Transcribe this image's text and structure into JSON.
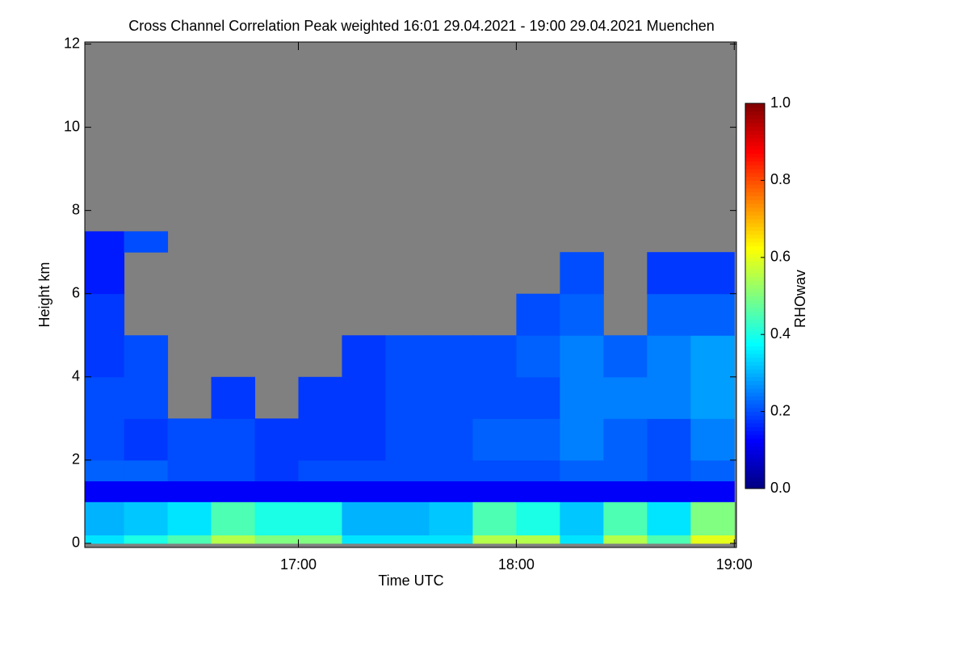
{
  "chart_data": {
    "type": "heatmap",
    "title": "Cross Channel Correlation Peak weighted   16:01 29.04.2021 - 19:00 29.04.2021 Muenchen",
    "x_label": "Time UTC",
    "y_label": "Height km",
    "xlim": [
      16.02,
      19.01
    ],
    "ylim": [
      -0.1,
      12.05
    ],
    "xticks": [
      {
        "value": 17,
        "label": "17:00"
      },
      {
        "value": 18,
        "label": "18:00"
      },
      {
        "value": 19,
        "label": "19:00"
      }
    ],
    "yticks": [
      0,
      2,
      4,
      6,
      8,
      10,
      12
    ],
    "xbins": [
      16.02,
      16.2,
      16.4,
      16.6,
      16.8,
      17.0,
      17.2,
      17.4,
      17.6,
      17.8,
      18.0,
      18.2,
      18.4,
      18.6,
      18.8,
      19.0
    ],
    "ybins": [
      0,
      0.2,
      1,
      1.5,
      2,
      3,
      4,
      5,
      6,
      7,
      7.5,
      12
    ],
    "z": [
      [
        0.35,
        0.4,
        0.45,
        0.55,
        0.5,
        0.5,
        0.35,
        0.35,
        0.35,
        0.55,
        0.55,
        0.35,
        0.55,
        0.45,
        0.6
      ],
      [
        0.3,
        0.32,
        0.35,
        0.45,
        0.4,
        0.4,
        0.3,
        0.3,
        0.32,
        0.45,
        0.4,
        0.32,
        0.45,
        0.35,
        0.5
      ],
      [
        0.12,
        0.12,
        0.12,
        0.12,
        0.12,
        0.12,
        0.12,
        0.12,
        0.12,
        0.12,
        0.12,
        0.12,
        0.12,
        0.12,
        0.12
      ],
      [
        0.22,
        0.22,
        0.2,
        0.2,
        0.18,
        0.2,
        0.2,
        0.2,
        0.2,
        0.2,
        0.2,
        0.22,
        0.22,
        0.2,
        0.22
      ],
      [
        0.2,
        0.18,
        0.2,
        0.2,
        0.18,
        0.18,
        0.18,
        0.2,
        0.2,
        0.22,
        0.22,
        0.25,
        0.22,
        0.2,
        0.25
      ],
      [
        0.2,
        0.2,
        null,
        0.18,
        null,
        0.18,
        0.18,
        0.2,
        0.2,
        0.2,
        0.2,
        0.25,
        0.25,
        0.25,
        0.28
      ],
      [
        0.18,
        0.2,
        null,
        null,
        null,
        null,
        0.18,
        0.2,
        0.2,
        0.2,
        0.22,
        0.25,
        0.22,
        0.25,
        0.28
      ],
      [
        0.18,
        null,
        null,
        null,
        null,
        null,
        null,
        null,
        null,
        null,
        0.2,
        0.22,
        null,
        0.22,
        0.22
      ],
      [
        0.15,
        null,
        null,
        null,
        null,
        null,
        null,
        null,
        null,
        null,
        null,
        0.2,
        null,
        0.18,
        0.18
      ],
      [
        0.15,
        0.2,
        null,
        null,
        null,
        null,
        null,
        null,
        null,
        null,
        null,
        null,
        null,
        null,
        null
      ],
      [
        null,
        null,
        null,
        null,
        null,
        null,
        null,
        null,
        null,
        null,
        null,
        null,
        null,
        null,
        null
      ]
    ],
    "missing_color": "#808080",
    "colormap": "jet",
    "colorbar": {
      "label": "RHOwav",
      "lim": [
        0,
        1
      ],
      "ticks": [
        {
          "value": 0,
          "label": "0.0"
        },
        0.2,
        0.4,
        0.6,
        0.8,
        {
          "value": 1,
          "label": "1.0"
        }
      ]
    }
  }
}
